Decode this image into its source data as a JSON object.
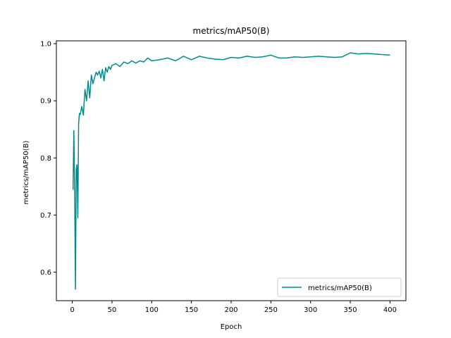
{
  "chart_data": {
    "type": "line",
    "title": "metrics/mAP50(B)",
    "xlabel": "Epoch",
    "ylabel": "metrics/mAP50(B)",
    "xlim": [
      -20,
      420
    ],
    "ylim": [
      0.55,
      1.005
    ],
    "xticks": [
      0,
      50,
      100,
      150,
      200,
      250,
      300,
      350,
      400
    ],
    "yticks": [
      0.6,
      0.7,
      0.8,
      0.9,
      1.0
    ],
    "ytick_labels": [
      "0.6",
      "0.7",
      "0.8",
      "0.9",
      "1.0"
    ],
    "grid": false,
    "legend_position": "lower right",
    "series": [
      {
        "name": "metrics/mAP50(B)",
        "color": "#008b8b",
        "x": [
          1,
          2,
          3,
          4,
          5,
          6,
          7,
          8,
          9,
          10,
          12,
          14,
          16,
          18,
          20,
          22,
          24,
          26,
          28,
          30,
          32,
          34,
          36,
          38,
          40,
          42,
          44,
          46,
          48,
          50,
          55,
          60,
          65,
          70,
          75,
          80,
          85,
          90,
          95,
          100,
          110,
          120,
          130,
          140,
          150,
          160,
          170,
          180,
          190,
          200,
          210,
          220,
          230,
          240,
          250,
          260,
          270,
          280,
          290,
          300,
          310,
          320,
          330,
          340,
          350,
          360,
          370,
          380,
          390,
          400
        ],
        "values": [
          0.744,
          0.848,
          0.745,
          0.57,
          0.78,
          0.788,
          0.695,
          0.86,
          0.878,
          0.876,
          0.89,
          0.875,
          0.92,
          0.9,
          0.935,
          0.905,
          0.945,
          0.93,
          0.94,
          0.95,
          0.945,
          0.952,
          0.94,
          0.955,
          0.935,
          0.958,
          0.95,
          0.96,
          0.955,
          0.962,
          0.965,
          0.96,
          0.968,
          0.965,
          0.97,
          0.966,
          0.97,
          0.968,
          0.975,
          0.97,
          0.972,
          0.975,
          0.97,
          0.978,
          0.972,
          0.978,
          0.975,
          0.973,
          0.972,
          0.976,
          0.975,
          0.978,
          0.976,
          0.977,
          0.98,
          0.975,
          0.975,
          0.977,
          0.976,
          0.977,
          0.978,
          0.977,
          0.976,
          0.977,
          0.984,
          0.982,
          0.983,
          0.982,
          0.981,
          0.98
        ]
      }
    ]
  }
}
